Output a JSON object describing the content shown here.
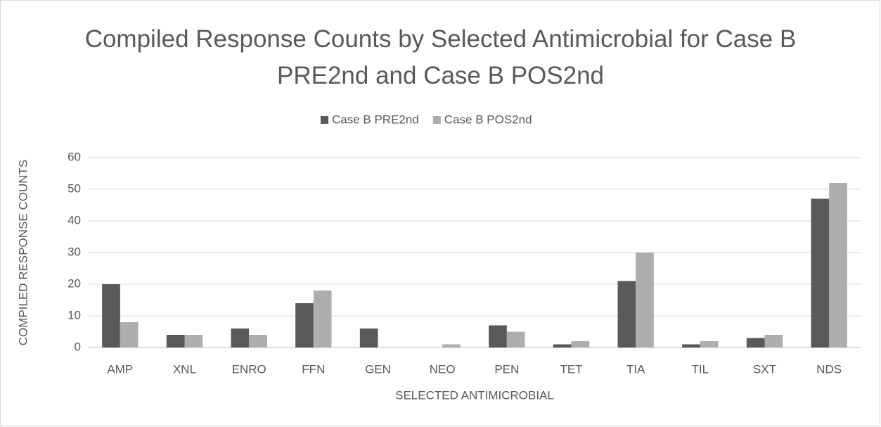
{
  "chart_data": {
    "type": "bar",
    "title": "Compiled Response Counts by Selected Antimicrobial for Case B PRE2nd and Case B POS2nd",
    "xlabel": "SELECTED ANTIMICROBIAL",
    "ylabel": "COMPILED RESPONSE COUNTS",
    "categories": [
      "AMP",
      "XNL",
      "ENRO",
      "FFN",
      "GEN",
      "NEO",
      "PEN",
      "TET",
      "TIA",
      "TIL",
      "SXT",
      "NDS"
    ],
    "series": [
      {
        "name": "Case B PRE2nd",
        "color": "#595959",
        "values": [
          20,
          4,
          6,
          14,
          6,
          0,
          7,
          1,
          21,
          1,
          3,
          47
        ]
      },
      {
        "name": "Case B POS2nd",
        "color": "#aeaeae",
        "values": [
          8,
          4,
          4,
          18,
          0,
          1,
          5,
          2,
          30,
          2,
          4,
          52
        ]
      }
    ],
    "ylim": [
      0,
      60
    ],
    "yticks": [
      0,
      10,
      20,
      30,
      40,
      50,
      60
    ],
    "grid": true,
    "legend": "top"
  }
}
